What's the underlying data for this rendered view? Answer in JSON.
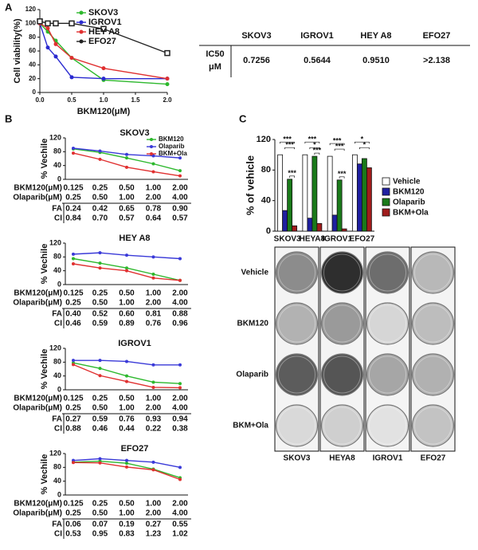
{
  "panel_labels": [
    "A",
    "B",
    "C"
  ],
  "ic50_table": {
    "header": [
      "SKOV3",
      "IGROV1",
      "HEY A8",
      "EFO27"
    ],
    "row_label": [
      "IC50",
      "μM"
    ],
    "values": [
      "0.7256",
      "0.5644",
      "0.9510",
      ">2.138"
    ]
  },
  "plates": {
    "rows": [
      "Vehicle",
      "BKM120",
      "Olaparib",
      "BKM+Ola"
    ],
    "columns": [
      "SKOV3",
      "HEYA8",
      "IGROV1",
      "EFO27"
    ]
  },
  "chart_data": [
    {
      "type": "line",
      "xlabel": "BKM120(μM)",
      "ylabel": "Cell viability(%)",
      "x": [
        0,
        0.125,
        0.25,
        0.5,
        1,
        2
      ],
      "xlim": [
        0,
        2
      ],
      "ylim": [
        0,
        120
      ],
      "xticks": [
        {
          "value": 0,
          "label": "0.0"
        },
        0.5,
        {
          "value": 1,
          "label": "1.0"
        },
        1.5,
        {
          "value": 2,
          "label": "2.0"
        }
      ],
      "yticks": [
        0,
        20,
        40,
        60,
        80,
        100,
        120
      ],
      "legend": "upper right",
      "series": [
        {
          "name": "SKOV3",
          "color": "#2db82d",
          "values": [
            100,
            88,
            75,
            50,
            18,
            12
          ]
        },
        {
          "name": "IGROV1",
          "color": "#2a2ad0",
          "values": [
            100,
            65,
            52,
            22,
            20,
            20
          ]
        },
        {
          "name": "HEY A8",
          "color": "#e03030",
          "values": [
            100,
            93,
            70,
            50,
            35,
            20
          ]
        },
        {
          "name": "EFO27",
          "color": "#222222",
          "values": [
            103,
            100,
            100,
            100,
            92,
            57
          ]
        }
      ]
    },
    {
      "type": "line",
      "title": "SKOV3",
      "ylabel": "% Vechile",
      "categories": [
        null,
        null,
        null,
        null,
        null
      ],
      "ylim": [
        0,
        120
      ],
      "yticks": [
        0,
        40,
        80,
        120
      ],
      "legend": "upper right",
      "series": [
        {
          "name": "BKM120",
          "color": "#2db82d",
          "values": [
            88,
            78,
            62,
            45,
            25
          ]
        },
        {
          "name": "Olaparib",
          "color": "#3a3ad8",
          "values": [
            90,
            82,
            72,
            68,
            62
          ]
        },
        {
          "name": "BKM+Ola",
          "color": "#e03030",
          "values": [
            76,
            58,
            35,
            22,
            10
          ]
        }
      ],
      "table": {
        "rows": [
          {
            "label": "BKM120(μM)",
            "cells": [
              "0.125",
              "0.25",
              "0.50",
              "1.00",
              "2.00"
            ]
          },
          {
            "label": "Olaparib(μM)",
            "cells": [
              "0.25",
              "0.50",
              "1.00",
              "2.00",
              "4.00"
            ]
          },
          {
            "label": "FA",
            "cells": [
              "0.24",
              "0.42",
              "0.65",
              "0.78",
              "0.90"
            ]
          },
          {
            "label": "CI",
            "cells": [
              "0.84",
              "0.70",
              "0.57",
              "0.64",
              "0.57"
            ]
          }
        ]
      }
    },
    {
      "type": "line",
      "title": "HEY A8",
      "ylabel": "% Vechile",
      "categories": [
        null,
        null,
        null,
        null,
        null
      ],
      "ylim": [
        0,
        120
      ],
      "yticks": [
        0,
        40,
        80,
        120
      ],
      "series": [
        {
          "name": "BKM120",
          "color": "#2db82d",
          "values": [
            75,
            62,
            48,
            30,
            12
          ]
        },
        {
          "name": "Olaparib",
          "color": "#3a3ad8",
          "values": [
            88,
            92,
            85,
            80,
            75
          ]
        },
        {
          "name": "BKM+Ola",
          "color": "#e03030",
          "values": [
            60,
            48,
            40,
            19,
            12
          ]
        }
      ],
      "table": {
        "rows": [
          {
            "label": "BKM120(μM)",
            "cells": [
              "0.125",
              "0.25",
              "0.50",
              "1.00",
              "2.00"
            ]
          },
          {
            "label": "Olaparib(μM)",
            "cells": [
              "0.25",
              "0.50",
              "1.00",
              "2.00",
              "4.00"
            ]
          },
          {
            "label": "FA",
            "cells": [
              "0.40",
              "0.52",
              "0.60",
              "0.81",
              "0.88"
            ]
          },
          {
            "label": "CI",
            "cells": [
              "0.46",
              "0.59",
              "0.89",
              "0.76",
              "0.96"
            ]
          }
        ]
      }
    },
    {
      "type": "line",
      "title": "IGROV1",
      "ylabel": "% Vechile",
      "categories": [
        null,
        null,
        null,
        null,
        null
      ],
      "ylim": [
        0,
        120
      ],
      "yticks": [
        0,
        40,
        80,
        120
      ],
      "series": [
        {
          "name": "BKM120",
          "color": "#2db82d",
          "values": [
            78,
            62,
            40,
            22,
            18
          ]
        },
        {
          "name": "Olaparib",
          "color": "#3a3ad8",
          "values": [
            85,
            85,
            82,
            72,
            72
          ]
        },
        {
          "name": "BKM+Ola",
          "color": "#e03030",
          "values": [
            73,
            41,
            24,
            7,
            6
          ]
        }
      ],
      "table": {
        "rows": [
          {
            "label": "BKM120(μM)",
            "cells": [
              "0.125",
              "0.25",
              "0.50",
              "1.00",
              "2.00"
            ]
          },
          {
            "label": "Olaparib(μM)",
            "cells": [
              "0.25",
              "0.50",
              "1.00",
              "2.00",
              "4.00"
            ]
          },
          {
            "label": "FA",
            "cells": [
              "0.27",
              "0.59",
              "0.76",
              "0.93",
              "0.94"
            ]
          },
          {
            "label": "CI",
            "cells": [
              "0.88",
              "0.46",
              "0.44",
              "0.22",
              "0.38"
            ]
          }
        ]
      }
    },
    {
      "type": "line",
      "title": "EFO27",
      "ylabel": "% Vechile",
      "categories": [
        null,
        null,
        null,
        null,
        null
      ],
      "ylim": [
        0,
        120
      ],
      "yticks": [
        0,
        40,
        80,
        120
      ],
      "series": [
        {
          "name": "BKM120",
          "color": "#2db82d",
          "values": [
            95,
            98,
            92,
            75,
            50
          ]
        },
        {
          "name": "Olaparib",
          "color": "#3a3ad8",
          "values": [
            100,
            105,
            100,
            95,
            80
          ]
        },
        {
          "name": "BKM+Ola",
          "color": "#e03030",
          "values": [
            94,
            93,
            81,
            73,
            45
          ]
        }
      ],
      "table": {
        "rows": [
          {
            "label": "BKM120(μM)",
            "cells": [
              "0.125",
              "0.25",
              "0.50",
              "1.00",
              "2.00"
            ]
          },
          {
            "label": "Olaparib(μM)",
            "cells": [
              "0.25",
              "0.50",
              "1.00",
              "2.00",
              "4.00"
            ]
          },
          {
            "label": "FA",
            "cells": [
              "0.06",
              "0.07",
              "0.19",
              "0.27",
              "0.55"
            ]
          },
          {
            "label": "CI",
            "cells": [
              "0.53",
              "0.95",
              "0.83",
              "1.23",
              "1.02"
            ]
          }
        ]
      }
    },
    {
      "type": "bar",
      "ylabel": "% of vehicle",
      "categories": [
        "SKOV3",
        "HEYA8",
        "IGROV1",
        "EFO27"
      ],
      "ylim": [
        0,
        120
      ],
      "yticks": [
        0,
        40,
        80,
        120
      ],
      "legend": "right",
      "series": [
        {
          "name": "Vehicle",
          "color": "#ffffff",
          "values": [
            100,
            100,
            98,
            100
          ]
        },
        {
          "name": "BKM120",
          "color": "#1f1fa0",
          "values": [
            27,
            17,
            21,
            88
          ]
        },
        {
          "name": "Olaparib",
          "color": "#1a7a1a",
          "values": [
            68,
            98,
            67,
            95
          ]
        },
        {
          "name": "BKM+Ola",
          "color": "#a01c1c",
          "values": [
            7,
            10,
            3,
            83
          ]
        }
      ],
      "significance": [
        [
          "***",
          "***",
          "***"
        ],
        [
          "***",
          "*",
          "***"
        ],
        [
          "***",
          "***",
          "***"
        ],
        [
          "*",
          "*"
        ]
      ]
    }
  ]
}
